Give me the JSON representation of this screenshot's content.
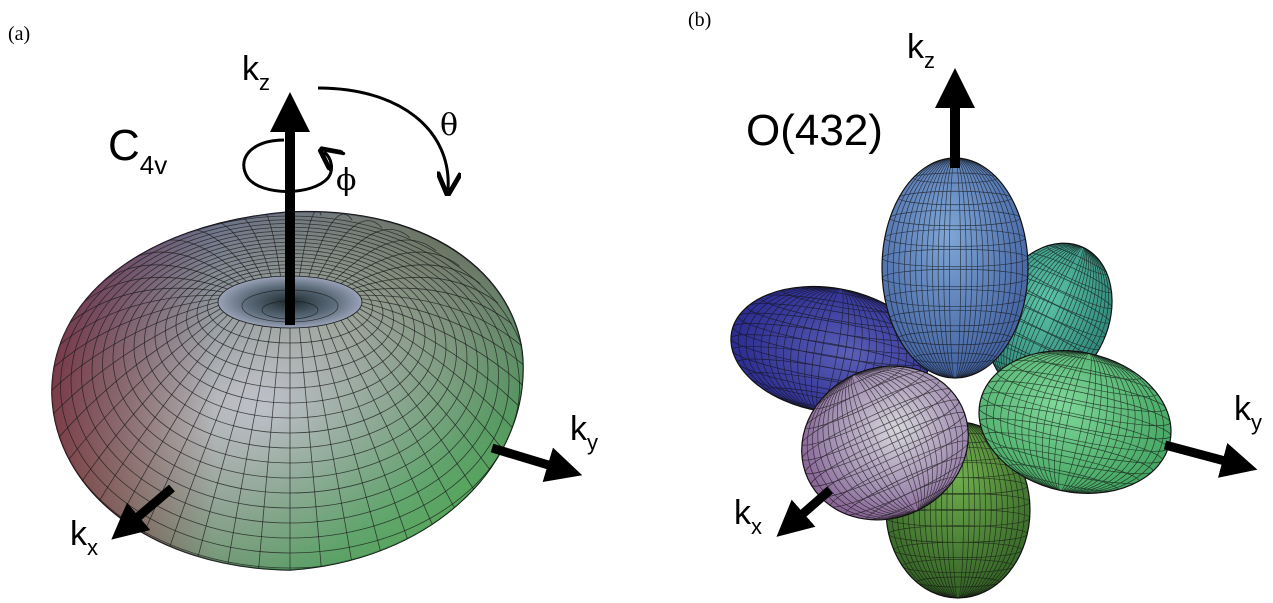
{
  "panel_a": {
    "tag": "(a)",
    "group": {
      "main": "C",
      "sub": "4v"
    },
    "angle_theta": "θ",
    "angle_phi": "ϕ",
    "axes": {
      "kz": {
        "main": "k",
        "sub": "z"
      },
      "ky": {
        "main": "k",
        "sub": "y"
      },
      "kx": {
        "main": "k",
        "sub": "x"
      }
    }
  },
  "panel_b": {
    "tag": "(b)",
    "group": "O(432)",
    "axes": {
      "kz": {
        "main": "k",
        "sub": "z"
      },
      "ky": {
        "main": "k",
        "sub": "y"
      },
      "kx": {
        "main": "k",
        "sub": "x"
      }
    }
  },
  "colors": {
    "blue": "#4a4fb8",
    "teal": "#3f9a8c",
    "green": "#5ec24f",
    "red": "#8a2a35",
    "grey": "#b8b8c4",
    "mesh": "#1a1a1a",
    "arrow": "#000000"
  }
}
